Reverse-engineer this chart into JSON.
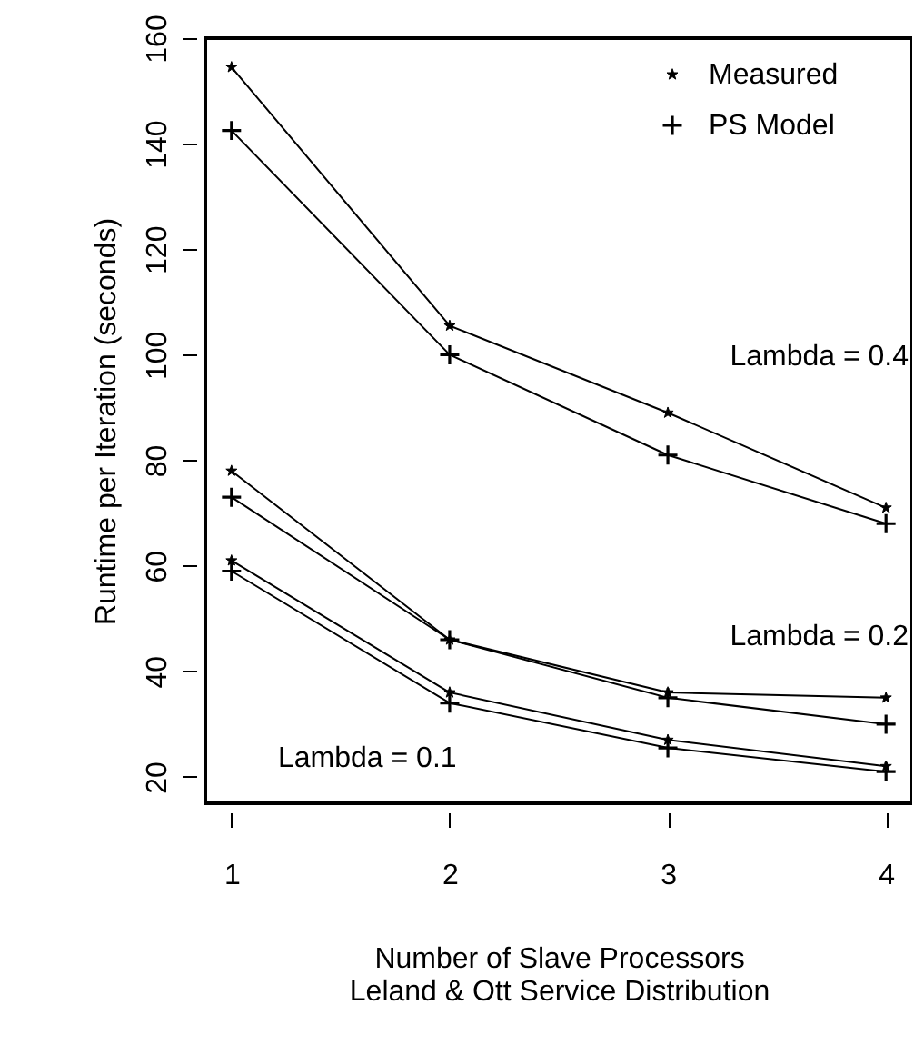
{
  "chart_data": {
    "type": "line",
    "xlabel": "Number of Slave Processors\nLeland & Ott Service Distribution",
    "ylabel": "Runtime per Iteration (seconds)",
    "x": [
      1,
      2,
      3,
      4
    ],
    "xlim": [
      0.88,
      4.12
    ],
    "xticks": [
      1,
      2,
      3,
      4
    ],
    "ylim": [
      15,
      160
    ],
    "yticks": [
      20,
      40,
      60,
      80,
      100,
      120,
      140,
      160
    ],
    "grid": false,
    "legend": "top right",
    "line_style": "solid",
    "series": [
      {
        "name": "Measured",
        "color": "#000000",
        "marker": "star",
        "values": [
          154.5,
          105.5,
          89,
          71
        ]
      },
      {
        "name": "PS Model",
        "color": "#000000",
        "marker": "cross",
        "values": [
          142.5,
          100,
          81,
          68
        ]
      },
      {
        "color": "#000000",
        "marker": "star",
        "values": [
          78,
          46,
          36,
          35
        ]
      },
      {
        "color": "#000000",
        "marker": "cross",
        "values": [
          73,
          46,
          35,
          30
        ]
      },
      {
        "color": "#000000",
        "marker": "star",
        "values": [
          61,
          36,
          27,
          22
        ]
      },
      {
        "color": "#000000",
        "marker": "cross",
        "values": [
          59,
          34,
          25.5,
          21
        ]
      }
    ],
    "annotations": [
      "Lambda = 0.4",
      "Lambda = 0.2",
      "Lambda = 0.1"
    ]
  }
}
